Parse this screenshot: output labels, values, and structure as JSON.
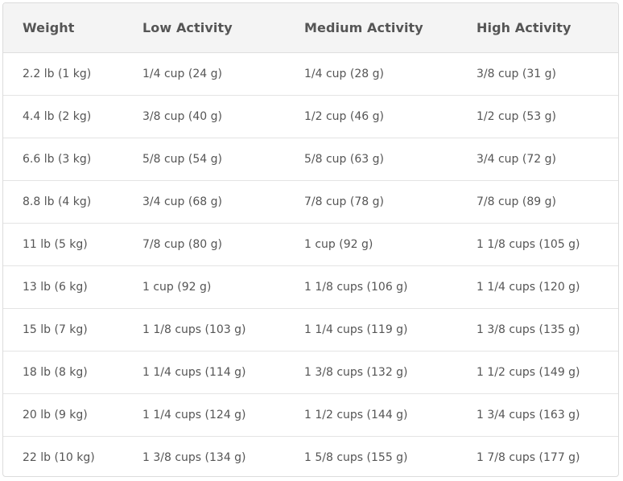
{
  "table": {
    "headers": [
      "Weight",
      "Low Activity",
      "Medium Activity",
      "High Activity"
    ],
    "rows": [
      [
        "2.2 lb (1 kg)",
        "1/4 cup (24 g)",
        "1/4 cup (28 g)",
        "3/8 cup (31 g)"
      ],
      [
        "4.4 lb (2 kg)",
        "3/8 cup (40 g)",
        "1/2 cup (46 g)",
        "1/2 cup (53 g)"
      ],
      [
        "6.6 lb (3 kg)",
        "5/8 cup (54 g)",
        "5/8 cup (63 g)",
        "3/4 cup (72 g)"
      ],
      [
        "8.8 lb (4 kg)",
        "3/4 cup (68 g)",
        "7/8 cup (78 g)",
        "7/8 cup (89 g)"
      ],
      [
        "11 lb (5 kg)",
        "7/8 cup (80 g)",
        "1 cup (92 g)",
        "1 1/8 cups (105 g)"
      ],
      [
        "13 lb (6 kg)",
        "1 cup (92 g)",
        "1 1/8 cups (106 g)",
        "1 1/4 cups (120 g)"
      ],
      [
        "15 lb (7 kg)",
        "1 1/8 cups (103 g)",
        "1 1/4 cups (119 g)",
        "1 3/8 cups (135 g)"
      ],
      [
        "18 lb (8 kg)",
        "1 1/4 cups (114 g)",
        "1 3/8 cups (132 g)",
        "1 1/2 cups (149 g)"
      ],
      [
        "20 lb (9 kg)",
        "1 1/4 cups (124 g)",
        "1 1/2 cups (144 g)",
        "1 3/4 cups (163 g)"
      ],
      [
        "22 lb (10 kg)",
        "1 3/8 cups (134 g)",
        "1 5/8 cups (155 g)",
        "1 7/8 cups (177 g)"
      ]
    ]
  }
}
